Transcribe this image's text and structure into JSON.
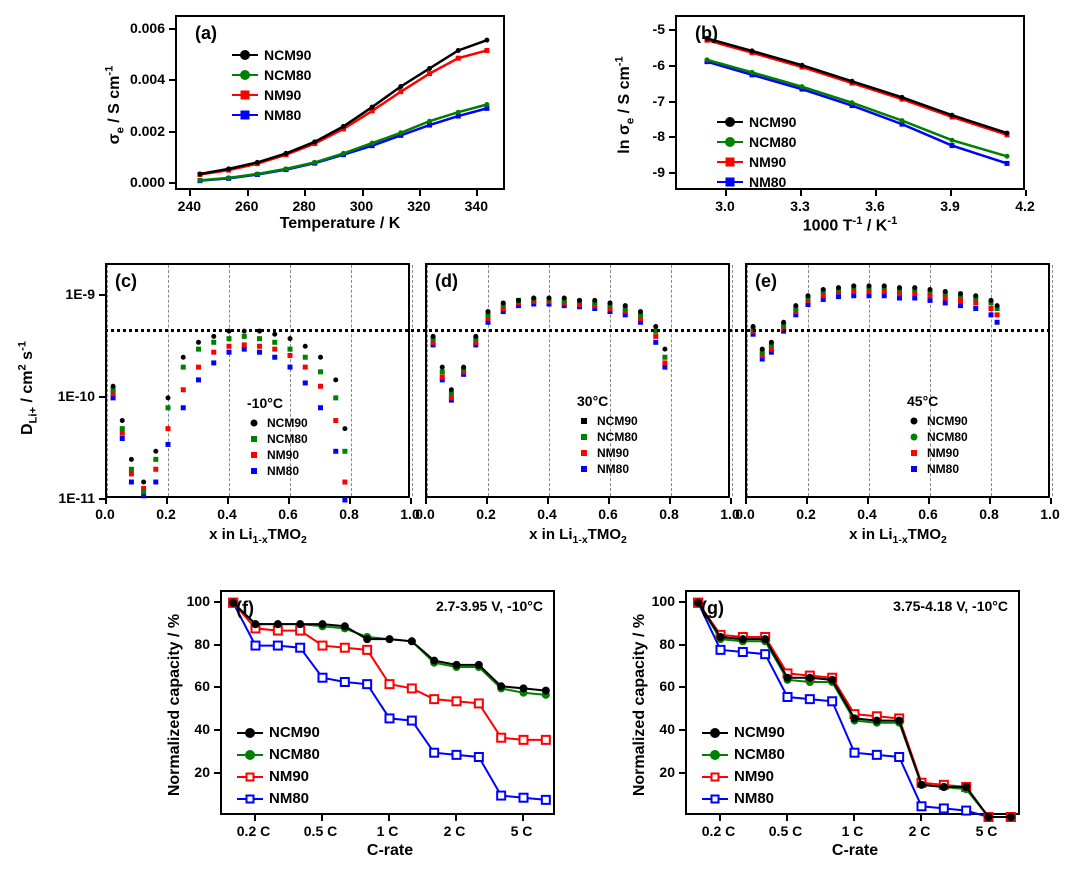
{
  "colors": {
    "ncm90": "#000000",
    "ncm80": "#008000",
    "nm90": "#ff0000",
    "nm80": "#0000ff",
    "axis": "#000000",
    "bg": "#ffffff",
    "grid": "#888888"
  },
  "series_names": {
    "ncm90": "NCM90",
    "ncm80": "NCM80",
    "nm90": "NM90",
    "nm80": "NM80"
  },
  "panel_a": {
    "label": "(a)",
    "type": "line-scatter",
    "xlabel": "Temperature / K",
    "ylabel_html": "σ<sub>e</sub> / S cm<sup>-1</sup>",
    "xlim": [
      235,
      350
    ],
    "ylim": [
      -0.0003,
      0.0065
    ],
    "xticks": [
      240,
      260,
      280,
      300,
      320,
      340
    ],
    "yticks": [
      0.0,
      0.002,
      0.004,
      0.006
    ],
    "ytick_labels": [
      "0.000",
      "0.002",
      "0.004",
      "0.006"
    ],
    "label_fontsize": 16,
    "tick_fontsize": 14,
    "line_width": 2.5,
    "marker_size": 5,
    "markers": {
      "ncm90": "circle",
      "ncm80": "circle",
      "nm90": "square",
      "nm80": "square"
    },
    "data": {
      "x": [
        243,
        253,
        263,
        273,
        283,
        293,
        303,
        313,
        323,
        333,
        343
      ],
      "ncm90": [
        0.0004,
        0.0006,
        0.00085,
        0.0012,
        0.00165,
        0.00225,
        0.003,
        0.0038,
        0.0045,
        0.0052,
        0.0056
      ],
      "ncm80": [
        0.00015,
        0.00025,
        0.0004,
        0.0006,
        0.00085,
        0.0012,
        0.0016,
        0.002,
        0.00245,
        0.0028,
        0.0031
      ],
      "nm90": [
        0.00038,
        0.00055,
        0.0008,
        0.00115,
        0.00158,
        0.00215,
        0.00285,
        0.0036,
        0.0043,
        0.0049,
        0.0052
      ],
      "nm80": [
        0.00014,
        0.00023,
        0.00038,
        0.00057,
        0.00082,
        0.00115,
        0.0015,
        0.0019,
        0.0023,
        0.00265,
        0.00295
      ]
    }
  },
  "panel_b": {
    "label": "(b)",
    "type": "line-scatter",
    "xlabel_html": "1000 T<sup>-1</sup> / K<sup>-1</sup>",
    "ylabel_html": "ln σ<sub>e</sub> / S cm<sup>-1</sup>",
    "xlim": [
      2.8,
      4.2
    ],
    "ylim": [
      -9.5,
      -4.6
    ],
    "xticks": [
      3.0,
      3.3,
      3.6,
      3.9,
      4.2
    ],
    "yticks": [
      -9,
      -8,
      -7,
      -6,
      -5
    ],
    "line_width": 2.5,
    "markers": {
      "ncm90": "circle",
      "ncm80": "circle",
      "nm90": "square",
      "nm80": "square"
    },
    "data": {
      "x": [
        2.92,
        3.1,
        3.3,
        3.5,
        3.7,
        3.9,
        4.12
      ],
      "ncm90": [
        -5.2,
        -5.55,
        -5.95,
        -6.4,
        -6.85,
        -7.35,
        -7.85
      ],
      "ncm80": [
        -5.8,
        -6.15,
        -6.55,
        -7.0,
        -7.5,
        -8.05,
        -8.5
      ],
      "nm90": [
        -5.25,
        -5.6,
        -6.0,
        -6.45,
        -6.9,
        -7.4,
        -7.9
      ],
      "nm80": [
        -5.85,
        -6.22,
        -6.62,
        -7.08,
        -7.6,
        -8.2,
        -8.7
      ]
    }
  },
  "panels_cde": {
    "type": "scatter",
    "xlabel_html": "x in Li<sub>1-x</sub>TMO<sub>2</sub>",
    "ylabel_html": "D<sub>Li+</sub> / cm<sup>2</sup> s<sup>-1</sup>",
    "xlim": [
      0.0,
      1.0
    ],
    "ylim_log": [
      1e-11,
      2e-09
    ],
    "xticks": [
      0.0,
      0.2,
      0.4,
      0.6,
      0.8,
      1.0
    ],
    "yticks_log": [
      1e-11,
      1e-10,
      1e-09
    ],
    "ytick_labels": [
      "1E-11",
      "1E-10",
      "1E-9"
    ],
    "grid_x_dash": [
      0.0,
      0.2,
      0.4,
      0.6,
      0.8,
      1.0
    ],
    "reference_dash_y": 4.5e-10,
    "marker_size": 5,
    "markers": {
      "ncm90": "circle",
      "ncm80": "square",
      "nm90": "square",
      "nm80": "square"
    },
    "panels": {
      "c": {
        "label": "(c)",
        "temp_label": "-10°C",
        "data": {
          "x": [
            0.02,
            0.05,
            0.08,
            0.12,
            0.16,
            0.2,
            0.25,
            0.3,
            0.35,
            0.4,
            0.45,
            0.5,
            0.55,
            0.6,
            0.65,
            0.7,
            0.75,
            0.78
          ],
          "ncm90": [
            1.3e-10,
            6e-11,
            2.5e-11,
            1.5e-11,
            3e-11,
            1e-10,
            2.5e-10,
            3.5e-10,
            4e-10,
            4.5e-10,
            4.5e-10,
            4.5e-10,
            4.2e-10,
            3.8e-10,
            3.2e-10,
            2.5e-10,
            1.5e-10,
            5e-11
          ],
          "ncm80": [
            1.2e-10,
            5e-11,
            2e-11,
            1.2e-11,
            2.5e-11,
            8e-11,
            2e-10,
            3e-10,
            3.5e-10,
            3.8e-10,
            4e-10,
            3.8e-10,
            3.5e-10,
            3e-10,
            2.5e-10,
            1.8e-10,
            1e-10,
            3e-11
          ],
          "nm90": [
            1.1e-10,
            4.5e-11,
            1.8e-11,
            1.3e-11,
            2e-11,
            5e-11,
            1.2e-10,
            2e-10,
            2.8e-10,
            3.2e-10,
            3.3e-10,
            3.2e-10,
            3e-10,
            2.6e-10,
            2e-10,
            1.3e-10,
            6e-11,
            1.5e-11
          ],
          "nm80": [
            1e-10,
            4e-11,
            1.5e-11,
            1.1e-11,
            1.5e-11,
            3.5e-11,
            8e-11,
            1.5e-10,
            2.2e-10,
            2.8e-10,
            3e-10,
            2.8e-10,
            2.5e-10,
            2e-10,
            1.4e-10,
            8e-11,
            3e-11,
            1e-11
          ]
        }
      },
      "d": {
        "label": "(d)",
        "temp_label": "30°C",
        "data": {
          "x": [
            0.02,
            0.05,
            0.08,
            0.12,
            0.16,
            0.2,
            0.25,
            0.3,
            0.35,
            0.4,
            0.45,
            0.5,
            0.55,
            0.6,
            0.65,
            0.7,
            0.75,
            0.78
          ],
          "ncm90": [
            4e-10,
            2e-10,
            1.2e-10,
            2e-10,
            4e-10,
            7e-10,
            8.5e-10,
            9e-10,
            9.5e-10,
            9.5e-10,
            9.5e-10,
            9e-10,
            9e-10,
            8.5e-10,
            8e-10,
            7e-10,
            5e-10,
            3e-10
          ],
          "ncm80": [
            3.8e-10,
            1.8e-10,
            1.1e-10,
            1.9e-10,
            3.8e-10,
            6.5e-10,
            8e-10,
            9e-10,
            9.2e-10,
            9.2e-10,
            9e-10,
            8.8e-10,
            8.5e-10,
            8e-10,
            7.5e-10,
            6.5e-10,
            4.5e-10,
            2.5e-10
          ],
          "nm90": [
            3.5e-10,
            1.6e-10,
            1e-10,
            1.8e-10,
            3.5e-10,
            6e-10,
            7.5e-10,
            8.5e-10,
            8.8e-10,
            8.8e-10,
            8.5e-10,
            8.2e-10,
            8e-10,
            7.5e-10,
            7e-10,
            6e-10,
            4e-10,
            2.2e-10
          ],
          "nm80": [
            3.3e-10,
            1.5e-10,
            9.5e-11,
            1.7e-10,
            3.3e-10,
            5.5e-10,
            7e-10,
            8e-10,
            8.3e-10,
            8.3e-10,
            8e-10,
            7.8e-10,
            7.5e-10,
            7e-10,
            6.5e-10,
            5.5e-10,
            3.5e-10,
            2e-10
          ]
        }
      },
      "e": {
        "label": "(e)",
        "temp_label": "45°C",
        "data": {
          "x": [
            0.02,
            0.05,
            0.08,
            0.12,
            0.16,
            0.2,
            0.25,
            0.3,
            0.35,
            0.4,
            0.45,
            0.5,
            0.55,
            0.6,
            0.65,
            0.7,
            0.75,
            0.8,
            0.82
          ],
          "ncm90": [
            5e-10,
            3e-10,
            3.5e-10,
            5.5e-10,
            8e-10,
            1e-09,
            1.15e-09,
            1.2e-09,
            1.25e-09,
            1.25e-09,
            1.25e-09,
            1.2e-09,
            1.2e-09,
            1.15e-09,
            1.1e-09,
            1.05e-09,
            1e-09,
            9e-10,
            8e-10
          ],
          "ncm80": [
            4.8e-10,
            2.8e-10,
            3.3e-10,
            5.2e-10,
            7.5e-10,
            9.5e-10,
            1.1e-09,
            1.15e-09,
            1.2e-09,
            1.2e-09,
            1.2e-09,
            1.15e-09,
            1.15e-09,
            1.1e-09,
            1.05e-09,
            1e-09,
            9.5e-10,
            8.5e-10,
            7.5e-10
          ],
          "nm90": [
            4.5e-10,
            2.6e-10,
            3e-10,
            4.8e-10,
            7e-10,
            9e-10,
            1e-09,
            1.1e-09,
            1.1e-09,
            1.1e-09,
            1.1e-09,
            1.05e-09,
            1.05e-09,
            1e-09,
            9.5e-10,
            9e-10,
            8.5e-10,
            7.5e-10,
            6.5e-10
          ],
          "nm80": [
            4.2e-10,
            2.4e-10,
            2.8e-10,
            4.5e-10,
            6.5e-10,
            8.2e-10,
            9.2e-10,
            9.8e-10,
            1e-09,
            1e-09,
            1e-09,
            9.5e-10,
            9.5e-10,
            9e-10,
            8.5e-10,
            8e-10,
            7.5e-10,
            6.5e-10,
            5.5e-10
          ]
        }
      }
    }
  },
  "panel_f": {
    "label": "(f)",
    "type": "step-line-marker",
    "title": "2.7-3.95 V, -10°C",
    "xlabel": "C-rate",
    "ylabel": "Normalized capacity / %",
    "xlim": [
      0.5,
      15.5
    ],
    "ylim": [
      0,
      105
    ],
    "yticks": [
      20,
      40,
      60,
      80,
      100
    ],
    "xtick_positions": [
      2,
      5,
      8,
      11,
      14
    ],
    "xtick_labels": [
      "0.2 C",
      "0.5 C",
      "1 C",
      "2 C",
      "5 C"
    ],
    "line_width": 2,
    "marker_size": 8,
    "markers": {
      "ncm90": "filled-circle",
      "ncm80": "filled-circle",
      "nm90": "open-square",
      "nm80": "open-square"
    },
    "data": {
      "x": [
        1,
        2,
        3,
        4,
        5,
        6,
        7,
        8,
        9,
        10,
        11,
        12,
        13,
        14,
        15
      ],
      "ncm90": [
        100,
        90,
        90,
        90,
        90,
        89,
        83,
        83,
        82,
        73,
        71,
        71,
        61,
        60,
        59
      ],
      "ncm80": [
        100,
        90,
        90,
        90,
        89,
        88,
        84,
        83,
        82,
        72,
        70,
        70,
        60,
        58,
        57
      ],
      "nm90": [
        100,
        88,
        87,
        87,
        80,
        79,
        78,
        62,
        60,
        55,
        54,
        53,
        37,
        36,
        36
      ],
      "nm80": [
        100,
        80,
        80,
        79,
        65,
        63,
        62,
        46,
        45,
        30,
        29,
        28,
        10,
        9,
        8
      ]
    }
  },
  "panel_g": {
    "label": "(g)",
    "type": "step-line-marker",
    "title": "3.75-4.18 V, -10°C",
    "xlabel": "C-rate",
    "ylabel": "Normalized capacity / %",
    "xlim": [
      0.5,
      15.5
    ],
    "ylim": [
      0,
      105
    ],
    "yticks": [
      20,
      40,
      60,
      80,
      100
    ],
    "xtick_positions": [
      2,
      5,
      8,
      11,
      14
    ],
    "xtick_labels": [
      "0.2 C",
      "0.5 C",
      "1 C",
      "2 C",
      "5 C"
    ],
    "line_width": 2,
    "marker_size": 8,
    "markers": {
      "ncm90": "filled-circle",
      "ncm80": "filled-circle",
      "nm90": "open-square",
      "nm80": "open-square"
    },
    "data": {
      "x": [
        1,
        2,
        3,
        4,
        5,
        6,
        7,
        8,
        9,
        10,
        11,
        12,
        13,
        14,
        15
      ],
      "ncm90": [
        100,
        84,
        83,
        83,
        65,
        65,
        64,
        46,
        45,
        45,
        15,
        14,
        14,
        0,
        0
      ],
      "ncm80": [
        100,
        83,
        82,
        82,
        64,
        63,
        63,
        45,
        44,
        44,
        15,
        14,
        13,
        0,
        0
      ],
      "nm90": [
        100,
        85,
        84,
        84,
        67,
        66,
        65,
        48,
        47,
        46,
        16,
        15,
        14,
        0,
        0
      ],
      "nm80": [
        100,
        78,
        77,
        76,
        56,
        55,
        54,
        30,
        29,
        28,
        5,
        4,
        3,
        0,
        0
      ]
    }
  }
}
